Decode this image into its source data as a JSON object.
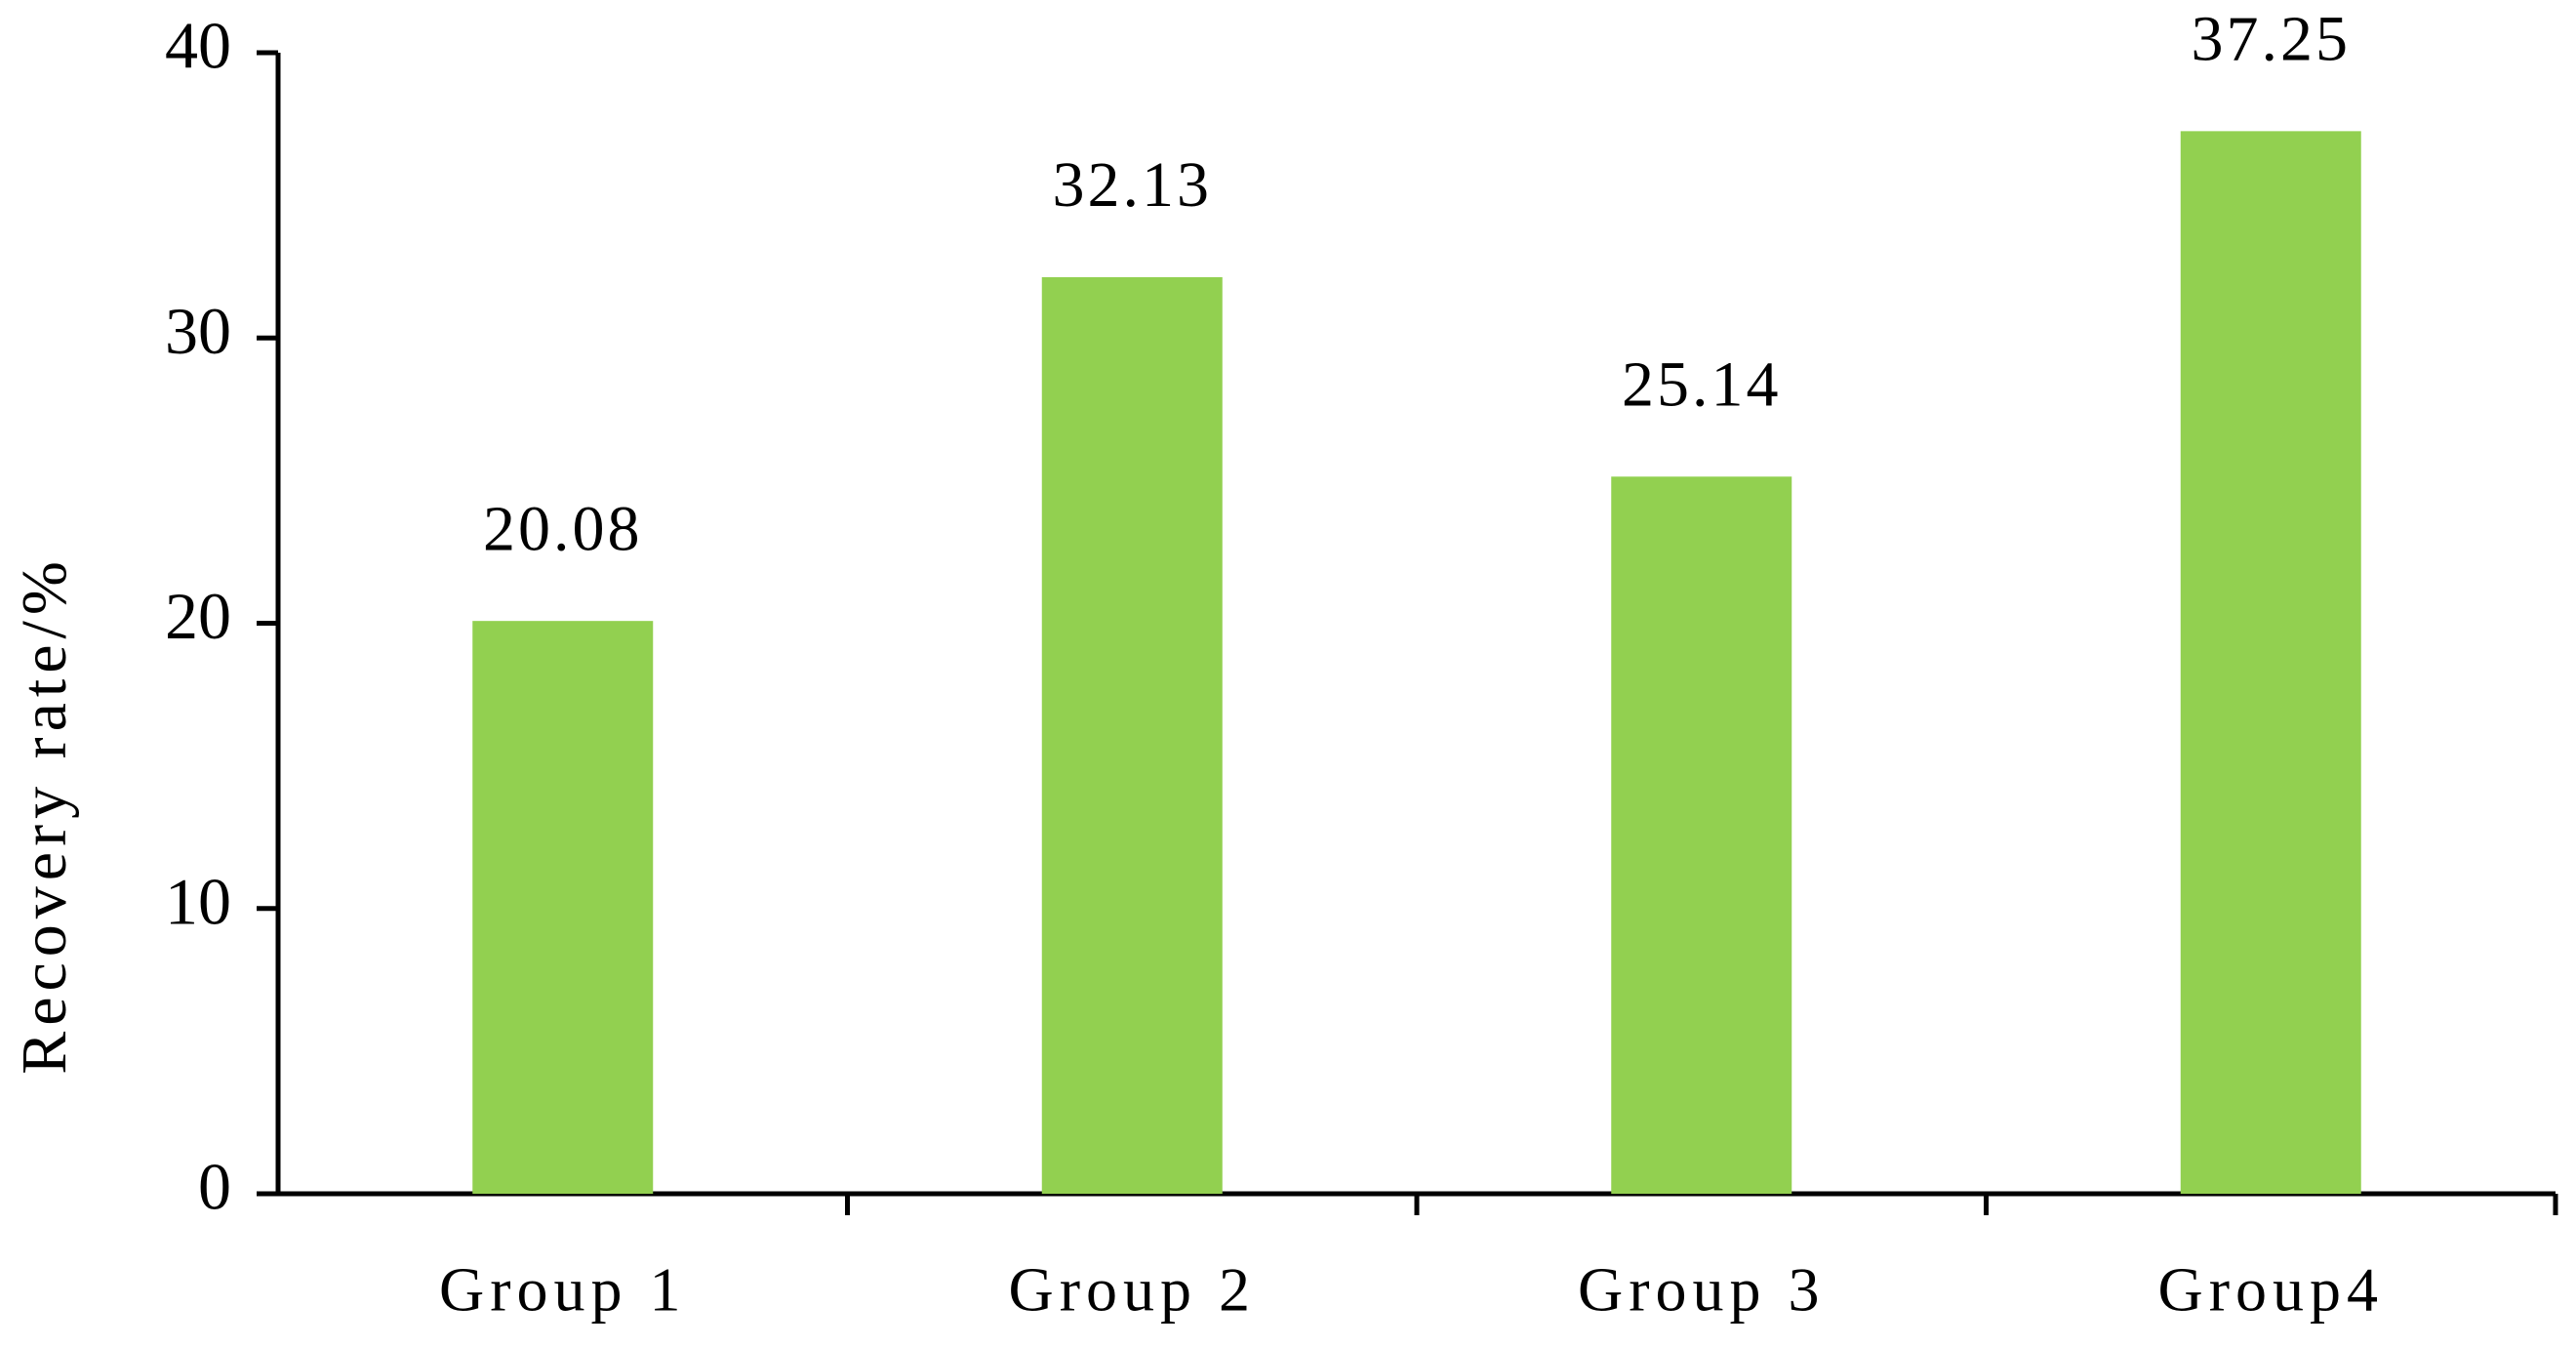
{
  "chart_data": {
    "type": "bar",
    "y_label": "Recovery rate/%",
    "categories": [
      "Group 1",
      "Group 2",
      "Group 3",
      "Group4"
    ],
    "values": [
      20.08,
      32.13,
      25.14,
      37.25
    ],
    "color": "#92d050",
    "ylim": [
      0,
      40
    ],
    "yticks": [
      0,
      10,
      20,
      30,
      40
    ],
    "grid": false
  }
}
